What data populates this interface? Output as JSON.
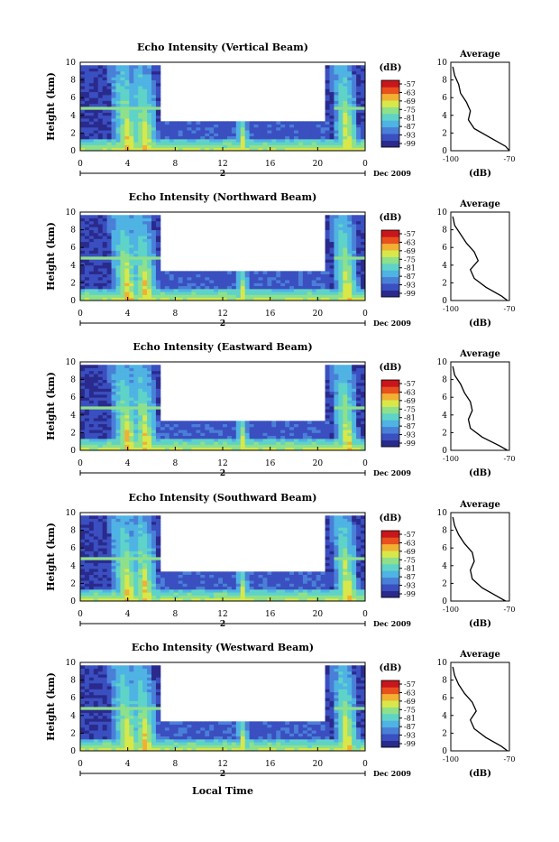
{
  "figure": {
    "x_title": "Local Time",
    "date_label": "Dec 2009",
    "day_label": "2"
  },
  "colorbar": {
    "unit": "(dB)",
    "ticks": [
      "-57",
      "-63",
      "-69",
      "-75",
      "-81",
      "-87",
      "-93",
      "-99"
    ],
    "colors": [
      "#2a2a8c",
      "#3a4fc0",
      "#4a7fd8",
      "#4fb3e3",
      "#5fd3c8",
      "#8fe08a",
      "#d8e84a",
      "#f2b032",
      "#e8501e",
      "#c8161c"
    ]
  },
  "chart_data": [
    {
      "type": "heatmap",
      "title": "Echo Intensity (Vertical Beam)",
      "ylabel": "Height (km)",
      "x_ticks": [
        "0",
        "4",
        "8",
        "12",
        "16",
        "20",
        "0"
      ],
      "y_ticks": [
        "0",
        "2",
        "4",
        "6",
        "8",
        "10"
      ],
      "xlim": [
        0,
        24
      ],
      "ylim": [
        0,
        10
      ],
      "avg_profile": {
        "title": "Average",
        "xlabel": "(dB)",
        "x_ticks": [
          "-100",
          "-70"
        ],
        "xlim": [
          -100,
          -70
        ],
        "y_ticks": [
          "0",
          "2",
          "4",
          "6",
          "8",
          "10"
        ],
        "ylim": [
          0,
          10
        ],
        "x": [
          -70,
          -72,
          -80,
          -88,
          -91,
          -90,
          -92,
          -95,
          -96,
          -98,
          -99
        ],
        "y": [
          0,
          0.5,
          1.5,
          2.5,
          3.5,
          4.5,
          5.5,
          6.5,
          7.5,
          8.5,
          9.5
        ]
      }
    },
    {
      "type": "heatmap",
      "title": "Echo Intensity (Northward Beam)",
      "ylabel": "Height (km)",
      "x_ticks": [
        "0",
        "4",
        "8",
        "12",
        "16",
        "20",
        "0"
      ],
      "y_ticks": [
        "0",
        "2",
        "4",
        "6",
        "8",
        "10"
      ],
      "xlim": [
        0,
        24
      ],
      "ylim": [
        0,
        10
      ],
      "avg_profile": {
        "title": "Average",
        "xlabel": "(dB)",
        "x_ticks": [
          "-100",
          "-70"
        ],
        "xlim": [
          -100,
          -70
        ],
        "y_ticks": [
          "0",
          "2",
          "4",
          "6",
          "8",
          "10"
        ],
        "ylim": [
          0,
          10
        ],
        "x": [
          -71,
          -74,
          -82,
          -88,
          -90,
          -86,
          -88,
          -92,
          -95,
          -98,
          -99
        ],
        "y": [
          0,
          0.5,
          1.5,
          2.5,
          3.5,
          4.5,
          5.5,
          6.5,
          7.5,
          8.5,
          9.5
        ]
      }
    },
    {
      "type": "heatmap",
      "title": "Echo Intensity (Eastward Beam)",
      "ylabel": "Height (km)",
      "x_ticks": [
        "0",
        "4",
        "8",
        "12",
        "16",
        "20",
        "0"
      ],
      "y_ticks": [
        "0",
        "2",
        "4",
        "6",
        "8",
        "10"
      ],
      "xlim": [
        0,
        24
      ],
      "ylim": [
        0,
        10
      ],
      "avg_profile": {
        "title": "Average",
        "xlabel": "(dB)",
        "x_ticks": [
          "-100",
          "-70"
        ],
        "xlim": [
          -100,
          -70
        ],
        "y_ticks": [
          "0",
          "2",
          "4",
          "6",
          "8",
          "10"
        ],
        "ylim": [
          0,
          10
        ],
        "x": [
          -71,
          -75,
          -84,
          -90,
          -91,
          -89,
          -90,
          -93,
          -95,
          -98,
          -99
        ],
        "y": [
          0,
          0.5,
          1.5,
          2.5,
          3.5,
          4.5,
          5.5,
          6.5,
          7.5,
          8.5,
          9.5
        ]
      }
    },
    {
      "type": "heatmap",
      "title": "Echo Intensity (Southward Beam)",
      "ylabel": "Height (km)",
      "x_ticks": [
        "0",
        "4",
        "8",
        "12",
        "16",
        "20",
        "0"
      ],
      "y_ticks": [
        "0",
        "2",
        "4",
        "6",
        "8",
        "10"
      ],
      "xlim": [
        0,
        24
      ],
      "ylim": [
        0,
        10
      ],
      "avg_profile": {
        "title": "Average",
        "xlabel": "(dB)",
        "x_ticks": [
          "-100",
          "-70"
        ],
        "xlim": [
          -100,
          -70
        ],
        "y_ticks": [
          "0",
          "2",
          "4",
          "6",
          "8",
          "10"
        ],
        "ylim": [
          0,
          10
        ],
        "x": [
          -72,
          -76,
          -84,
          -89,
          -90,
          -88,
          -89,
          -93,
          -96,
          -98,
          -99
        ],
        "y": [
          0,
          0.5,
          1.5,
          2.5,
          3.5,
          4.5,
          5.5,
          6.5,
          7.5,
          8.5,
          9.5
        ]
      }
    },
    {
      "type": "heatmap",
      "title": "Echo Intensity (Westward Beam)",
      "ylabel": "Height (km)",
      "x_ticks": [
        "0",
        "4",
        "8",
        "12",
        "16",
        "20",
        "0"
      ],
      "y_ticks": [
        "0",
        "2",
        "4",
        "6",
        "8",
        "10"
      ],
      "xlim": [
        0,
        24
      ],
      "ylim": [
        0,
        10
      ],
      "avg_profile": {
        "title": "Average",
        "xlabel": "(dB)",
        "x_ticks": [
          "-100",
          "-70"
        ],
        "xlim": [
          -100,
          -70
        ],
        "y_ticks": [
          "0",
          "2",
          "4",
          "6",
          "8",
          "10"
        ],
        "ylim": [
          0,
          10
        ],
        "x": [
          -71,
          -74,
          -82,
          -88,
          -90,
          -87,
          -89,
          -93,
          -96,
          -98,
          -99
        ],
        "y": [
          0,
          0.5,
          1.5,
          2.5,
          3.5,
          4.5,
          5.5,
          6.5,
          7.5,
          8.5,
          9.5
        ]
      }
    }
  ]
}
